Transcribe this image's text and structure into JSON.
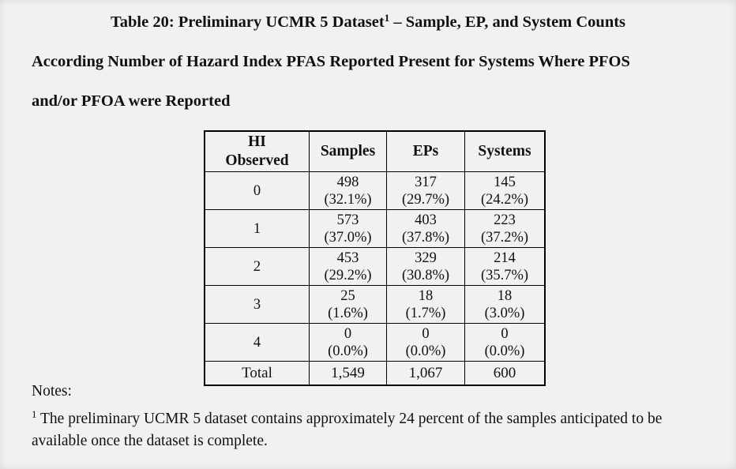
{
  "colors": {
    "page_background": "#f1f1f1",
    "text": "#111111",
    "table_border": "#000000"
  },
  "caption": {
    "line1_before_sup": "Table 20: Preliminary UCMR 5 Dataset",
    "line1_sup": "1",
    "line1_after_sup": " – Sample, EP, and System Counts",
    "line2": "According Number of Hazard Index PFAS Reported Present for Systems Where PFOS",
    "line3": "and/or PFOA were Reported"
  },
  "table": {
    "headers": [
      "HI Observed",
      "Samples",
      "EPs",
      "Systems"
    ],
    "rows": [
      {
        "hi": "0",
        "samples": "498",
        "samples_pct": "(32.1%)",
        "eps": "317",
        "eps_pct": "(29.7%)",
        "systems": "145",
        "systems_pct": "(24.2%)"
      },
      {
        "hi": "1",
        "samples": "573",
        "samples_pct": "(37.0%)",
        "eps": "403",
        "eps_pct": "(37.8%)",
        "systems": "223",
        "systems_pct": "(37.2%)"
      },
      {
        "hi": "2",
        "samples": "453",
        "samples_pct": "(29.2%)",
        "eps": "329",
        "eps_pct": "(30.8%)",
        "systems": "214",
        "systems_pct": "(35.7%)"
      },
      {
        "hi": "3",
        "samples": "25",
        "samples_pct": "(1.6%)",
        "eps": "18",
        "eps_pct": "(1.7%)",
        "systems": "18",
        "systems_pct": "(3.0%)"
      },
      {
        "hi": "4",
        "samples": "0",
        "samples_pct": "(0.0%)",
        "eps": "0",
        "eps_pct": "(0.0%)",
        "systems": "0",
        "systems_pct": "(0.0%)"
      }
    ],
    "total": {
      "label": "Total",
      "samples": "1,549",
      "eps": "1,067",
      "systems": "600"
    }
  },
  "notes": {
    "label": "Notes:",
    "footnote_sup": "1",
    "footnote_text": " The preliminary UCMR 5 dataset contains approximately 24 percent of the samples anticipated to be available once the dataset is complete."
  }
}
